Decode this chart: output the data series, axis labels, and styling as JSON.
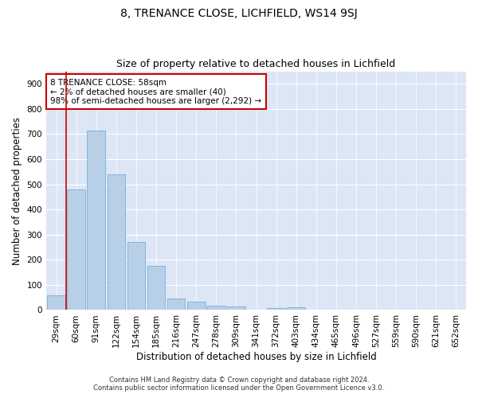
{
  "title": "8, TRENANCE CLOSE, LICHFIELD, WS14 9SJ",
  "subtitle": "Size of property relative to detached houses in Lichfield",
  "xlabel": "Distribution of detached houses by size in Lichfield",
  "ylabel": "Number of detached properties",
  "categories": [
    "29sqm",
    "60sqm",
    "91sqm",
    "122sqm",
    "154sqm",
    "185sqm",
    "216sqm",
    "247sqm",
    "278sqm",
    "309sqm",
    "341sqm",
    "372sqm",
    "403sqm",
    "434sqm",
    "465sqm",
    "496sqm",
    "527sqm",
    "559sqm",
    "590sqm",
    "621sqm",
    "652sqm"
  ],
  "values": [
    60,
    480,
    715,
    540,
    270,
    175,
    47,
    33,
    17,
    15,
    0,
    8,
    10,
    0,
    0,
    0,
    0,
    0,
    0,
    0,
    0
  ],
  "bar_color": "#b8cfe8",
  "bar_edge_color": "#7aafd4",
  "highlight_line_color": "#cc0000",
  "annotation_text": "8 TRENANCE CLOSE: 58sqm\n← 2% of detached houses are smaller (40)\n98% of semi-detached houses are larger (2,292) →",
  "annotation_box_color": "#ffffff",
  "annotation_box_edge_color": "#cc0000",
  "ylim": [
    0,
    950
  ],
  "yticks": [
    0,
    100,
    200,
    300,
    400,
    500,
    600,
    700,
    800,
    900
  ],
  "plot_bg_color": "#dce6f5",
  "grid_color": "#ffffff",
  "footer_line1": "Contains HM Land Registry data © Crown copyright and database right 2024.",
  "footer_line2": "Contains public sector information licensed under the Open Government Licence v3.0.",
  "title_fontsize": 10,
  "subtitle_fontsize": 9,
  "tick_fontsize": 7.5,
  "ylabel_fontsize": 8.5,
  "xlabel_fontsize": 8.5,
  "annotation_fontsize": 7.5,
  "footer_fontsize": 6
}
